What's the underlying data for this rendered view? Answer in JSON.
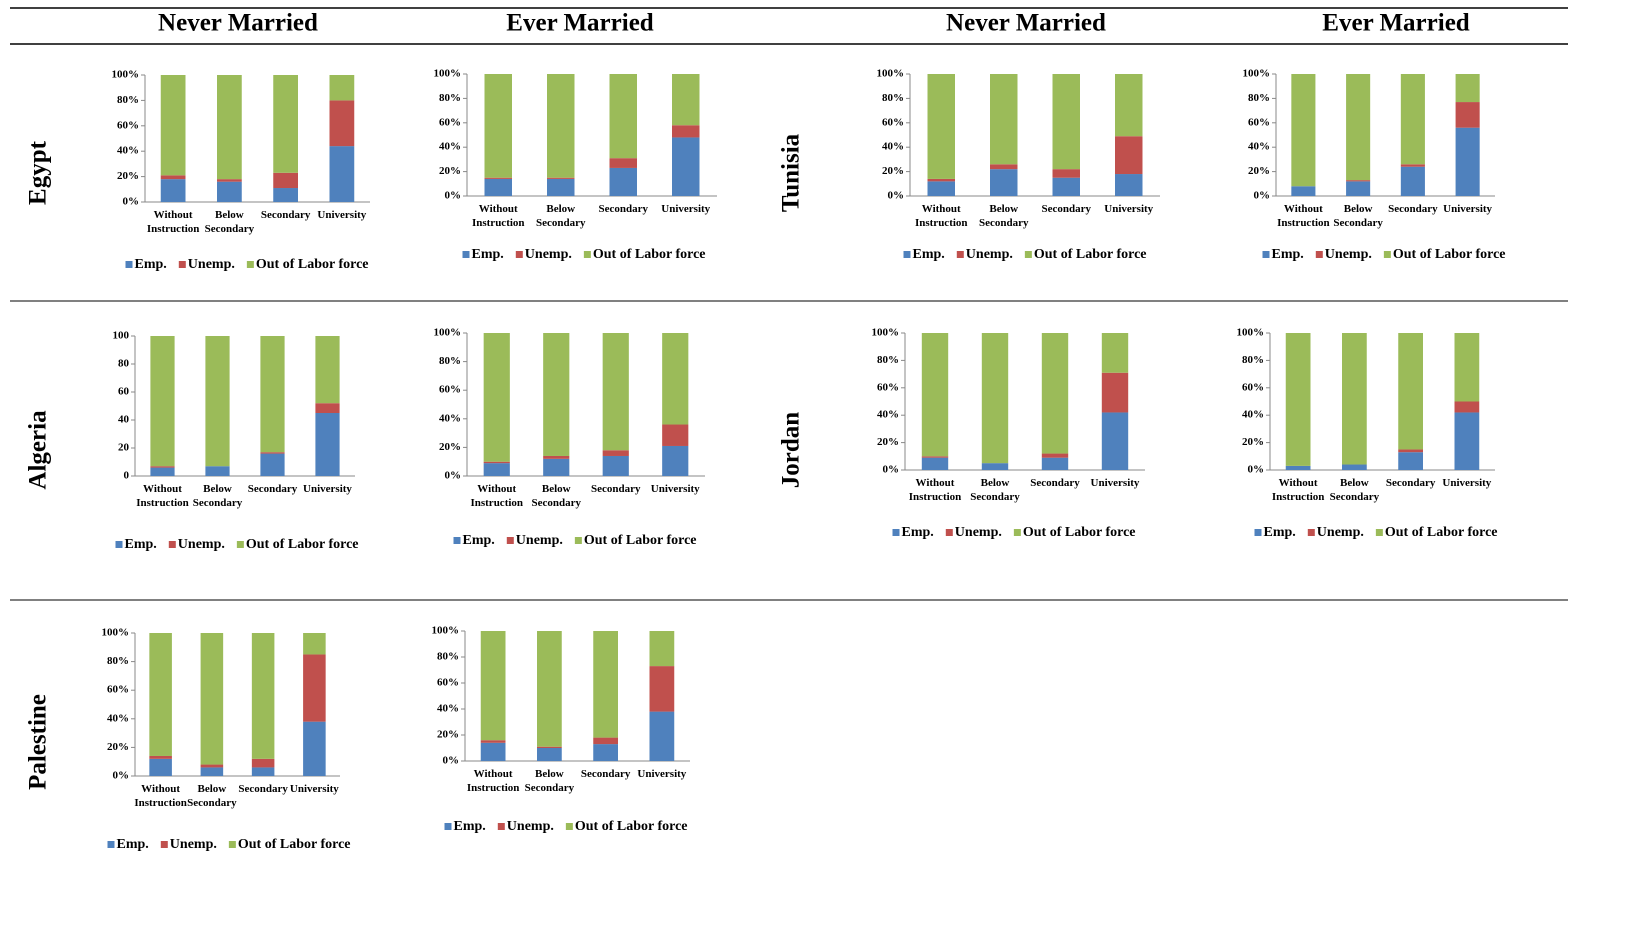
{
  "headers": [
    "Never Married",
    "Ever Married",
    "Never Married",
    "Ever Married"
  ],
  "row_labels": [
    "Egypt",
    "Tunisia",
    "Algeria",
    "Jordan",
    "Palestine"
  ],
  "chart_data": [
    {
      "type": "stacked_bar",
      "categories": [
        "Without Instruction",
        "Below Secondary",
        "Secondary",
        "University"
      ],
      "series": [
        {
          "name": "Emp.",
          "color": "#4f81bd",
          "values": [
            18,
            16,
            11,
            44
          ]
        },
        {
          "name": "Unemp.",
          "color": "#c0504d",
          "values": [
            3,
            2,
            12,
            36
          ]
        },
        {
          "name": "Out of Labor force",
          "color": "#9bbb59",
          "values": [
            79,
            82,
            77,
            20
          ]
        }
      ],
      "ylim": [
        0,
        100
      ],
      "yticks": [
        {
          "value": 0,
          "label": "0%"
        },
        {
          "value": 20,
          "label": "20%"
        },
        {
          "value": 40,
          "label": "40%"
        },
        {
          "value": 60,
          "label": "60%"
        },
        {
          "value": 80,
          "label": "80%"
        },
        {
          "value": 100,
          "label": "100%"
        }
      ]
    },
    {
      "type": "stacked_bar",
      "categories": [
        "Without Instruction",
        "Below Secondary",
        "Secondary",
        "University"
      ],
      "series": [
        {
          "name": "Emp.",
          "color": "#4f81bd",
          "values": [
            14,
            14,
            23,
            48
          ]
        },
        {
          "name": "Unemp.",
          "color": "#c0504d",
          "values": [
            1,
            1,
            8,
            10
          ]
        },
        {
          "name": "Out of Labor force",
          "color": "#9bbb59",
          "values": [
            85,
            85,
            69,
            42
          ]
        }
      ],
      "ylim": [
        0,
        100
      ],
      "yticks": [
        {
          "value": 0,
          "label": "0%"
        },
        {
          "value": 20,
          "label": "20%"
        },
        {
          "value": 40,
          "label": "40%"
        },
        {
          "value": 60,
          "label": "60%"
        },
        {
          "value": 80,
          "label": "80%"
        },
        {
          "value": 100,
          "label": "100%"
        }
      ]
    },
    {
      "type": "stacked_bar",
      "categories": [
        "Without Instruction",
        "Below Secondary",
        "Secondary",
        "University"
      ],
      "series": [
        {
          "name": "Emp.",
          "color": "#4f81bd",
          "values": [
            12,
            22,
            15,
            18
          ]
        },
        {
          "name": "Unemp.",
          "color": "#c0504d",
          "values": [
            2,
            4,
            7,
            31
          ]
        },
        {
          "name": "Out of Labor force",
          "color": "#9bbb59",
          "values": [
            86,
            74,
            78,
            51
          ]
        }
      ],
      "ylim": [
        0,
        100
      ],
      "yticks": [
        {
          "value": 0,
          "label": "0%"
        },
        {
          "value": 20,
          "label": "20%"
        },
        {
          "value": 40,
          "label": "40%"
        },
        {
          "value": 60,
          "label": "60%"
        },
        {
          "value": 80,
          "label": "80%"
        },
        {
          "value": 100,
          "label": "100%"
        }
      ]
    },
    {
      "type": "stacked_bar",
      "categories": [
        "Without Instruction",
        "Below Secondary",
        "Secondary",
        "University"
      ],
      "series": [
        {
          "name": "Emp.",
          "color": "#4f81bd",
          "values": [
            8,
            12,
            24,
            56
          ]
        },
        {
          "name": "Unemp.",
          "color": "#c0504d",
          "values": [
            0,
            1,
            2,
            21
          ]
        },
        {
          "name": "Out of Labor force",
          "color": "#9bbb59",
          "values": [
            92,
            87,
            74,
            23
          ]
        }
      ],
      "ylim": [
        0,
        100
      ],
      "yticks": [
        {
          "value": 0,
          "label": "0%"
        },
        {
          "value": 20,
          "label": "20%"
        },
        {
          "value": 40,
          "label": "40%"
        },
        {
          "value": 60,
          "label": "60%"
        },
        {
          "value": 80,
          "label": "80%"
        },
        {
          "value": 100,
          "label": "100%"
        }
      ]
    },
    {
      "type": "stacked_bar",
      "categories": [
        "Without Instruction",
        "Below Secondary",
        "Secondary",
        "University"
      ],
      "series": [
        {
          "name": "Emp.",
          "color": "#4f81bd",
          "values": [
            6,
            7,
            16,
            45
          ]
        },
        {
          "name": "Unemp.",
          "color": "#c0504d",
          "values": [
            1,
            0,
            1,
            7
          ]
        },
        {
          "name": "Out of Labor force",
          "color": "#9bbb59",
          "values": [
            93,
            93,
            83,
            48
          ]
        }
      ],
      "ylim": [
        0,
        100
      ],
      "yticks": [
        0,
        20,
        40,
        60,
        80,
        100
      ]
    },
    {
      "type": "stacked_bar",
      "categories": [
        "Without Instruction",
        "Below Secondary",
        "Secondary",
        "University"
      ],
      "series": [
        {
          "name": "Emp.",
          "color": "#4f81bd",
          "values": [
            9,
            12,
            14,
            21
          ]
        },
        {
          "name": "Unemp.",
          "color": "#c0504d",
          "values": [
            1,
            2,
            4,
            15
          ]
        },
        {
          "name": "Out of Labor force",
          "color": "#9bbb59",
          "values": [
            90,
            86,
            82,
            64
          ]
        }
      ],
      "ylim": [
        0,
        100
      ],
      "yticks": [
        {
          "value": 0,
          "label": "0%"
        },
        {
          "value": 20,
          "label": "20%"
        },
        {
          "value": 40,
          "label": "40%"
        },
        {
          "value": 60,
          "label": "60%"
        },
        {
          "value": 80,
          "label": "80%"
        },
        {
          "value": 100,
          "label": "100%"
        }
      ]
    },
    {
      "type": "stacked_bar",
      "categories": [
        "Without Instruction",
        "Below Secondary",
        "Secondary",
        "University"
      ],
      "series": [
        {
          "name": "Emp.",
          "color": "#4f81bd",
          "values": [
            9,
            5,
            9,
            42
          ]
        },
        {
          "name": "Unemp.",
          "color": "#c0504d",
          "values": [
            1,
            0,
            3,
            29
          ]
        },
        {
          "name": "Out of Labor force",
          "color": "#9bbb59",
          "values": [
            90,
            95,
            88,
            29
          ]
        }
      ],
      "ylim": [
        0,
        100
      ],
      "yticks": [
        {
          "value": 0,
          "label": "0%"
        },
        {
          "value": 20,
          "label": "20%"
        },
        {
          "value": 40,
          "label": "40%"
        },
        {
          "value": 60,
          "label": "60%"
        },
        {
          "value": 80,
          "label": "80%"
        },
        {
          "value": 100,
          "label": "100%"
        }
      ]
    },
    {
      "type": "stacked_bar",
      "categories": [
        "Without Instruction",
        "Below Secondary",
        "Secondary",
        "University"
      ],
      "series": [
        {
          "name": "Emp.",
          "color": "#4f81bd",
          "values": [
            3,
            4,
            13,
            42
          ]
        },
        {
          "name": "Unemp.",
          "color": "#c0504d",
          "values": [
            0,
            0,
            2,
            8
          ]
        },
        {
          "name": "Out of Labor force",
          "color": "#9bbb59",
          "values": [
            97,
            96,
            85,
            50
          ]
        }
      ],
      "ylim": [
        0,
        100
      ],
      "yticks": [
        {
          "value": 0,
          "label": "0%"
        },
        {
          "value": 20,
          "label": "20%"
        },
        {
          "value": 40,
          "label": "40%"
        },
        {
          "value": 60,
          "label": "60%"
        },
        {
          "value": 80,
          "label": "80%"
        },
        {
          "value": 100,
          "label": "100%"
        }
      ]
    },
    {
      "type": "stacked_bar",
      "categories": [
        "Without Instruction",
        "Below Secondary",
        "Secondary",
        "University"
      ],
      "series": [
        {
          "name": "Emp.",
          "color": "#4f81bd",
          "values": [
            12,
            6,
            6,
            38
          ]
        },
        {
          "name": "Unemp.",
          "color": "#c0504d",
          "values": [
            2,
            2,
            6,
            47
          ]
        },
        {
          "name": "Out of Labor force",
          "color": "#9bbb59",
          "values": [
            86,
            92,
            88,
            15
          ]
        }
      ],
      "ylim": [
        0,
        100
      ],
      "yticks": [
        {
          "value": 0,
          "label": "0%"
        },
        {
          "value": 20,
          "label": "20%"
        },
        {
          "value": 40,
          "label": "40%"
        },
        {
          "value": 60,
          "label": "60%"
        },
        {
          "value": 80,
          "label": "80%"
        },
        {
          "value": 100,
          "label": "100%"
        }
      ]
    },
    {
      "type": "stacked_bar",
      "categories": [
        "Without Instruction",
        "Below Secondary",
        "Secondary",
        "University"
      ],
      "series": [
        {
          "name": "Emp.",
          "color": "#4f81bd",
          "values": [
            14,
            10,
            13,
            38
          ]
        },
        {
          "name": "Unemp.",
          "color": "#c0504d",
          "values": [
            2,
            1,
            5,
            35
          ]
        },
        {
          "name": "Out of Labor force",
          "color": "#9bbb59",
          "values": [
            84,
            89,
            82,
            27
          ]
        }
      ],
      "ylim": [
        0,
        100
      ],
      "yticks": [
        {
          "value": 0,
          "label": "0%"
        },
        {
          "value": 20,
          "label": "20%"
        },
        {
          "value": 40,
          "label": "40%"
        },
        {
          "value": 60,
          "label": "60%"
        },
        {
          "value": 80,
          "label": "80%"
        },
        {
          "value": 100,
          "label": "100%"
        }
      ]
    }
  ]
}
